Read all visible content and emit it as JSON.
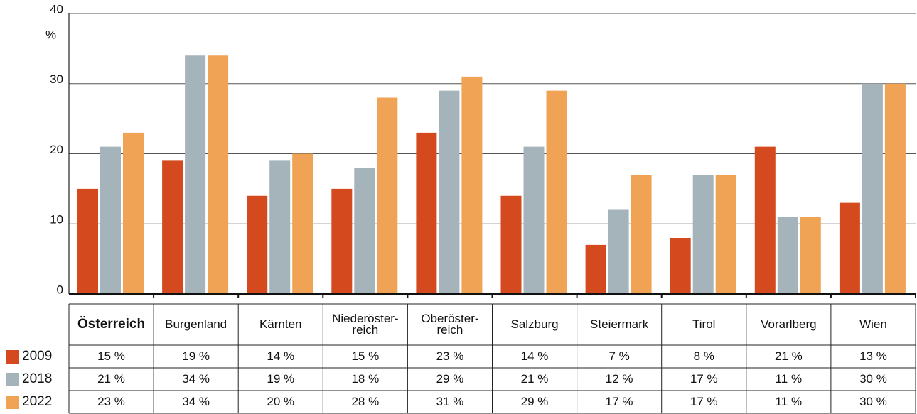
{
  "chart_data": {
    "type": "bar",
    "ylabel": "%",
    "categories": [
      "Österreich",
      "Burgenland",
      "Kärnten",
      "Niederöster-\nreich",
      "Oberöster-\nreich",
      "Salzburg",
      "Steiermark",
      "Tirol",
      "Vorarlberg",
      "Wien"
    ],
    "series": [
      {
        "name": "2009",
        "color": "#d44a1e",
        "values": [
          15,
          19,
          14,
          15,
          23,
          14,
          7,
          8,
          21,
          13
        ],
        "value_labels": [
          "15 %",
          "19 %",
          "14 %",
          "15 %",
          "23 %",
          "14 %",
          "7 %",
          "8 %",
          "21 %",
          "13 %"
        ]
      },
      {
        "name": "2018",
        "color": "#a5b3ba",
        "values": [
          21,
          34,
          19,
          18,
          29,
          21,
          12,
          17,
          11,
          30
        ],
        "value_labels": [
          "21 %",
          "34 %",
          "19 %",
          "18 %",
          "29 %",
          "21 %",
          "12 %",
          "17 %",
          "11 %",
          "30 %"
        ]
      },
      {
        "name": "2022",
        "color": "#f0a255",
        "values": [
          23,
          34,
          20,
          28,
          31,
          29,
          17,
          17,
          11,
          30
        ],
        "value_labels": [
          "23 %",
          "34 %",
          "20 %",
          "28 %",
          "31 %",
          "29 %",
          "17 %",
          "17 %",
          "11 %",
          "30 %"
        ]
      }
    ],
    "ylim": [
      0,
      40
    ],
    "yticks": [
      0,
      10,
      20,
      30,
      40
    ],
    "grid": true
  }
}
